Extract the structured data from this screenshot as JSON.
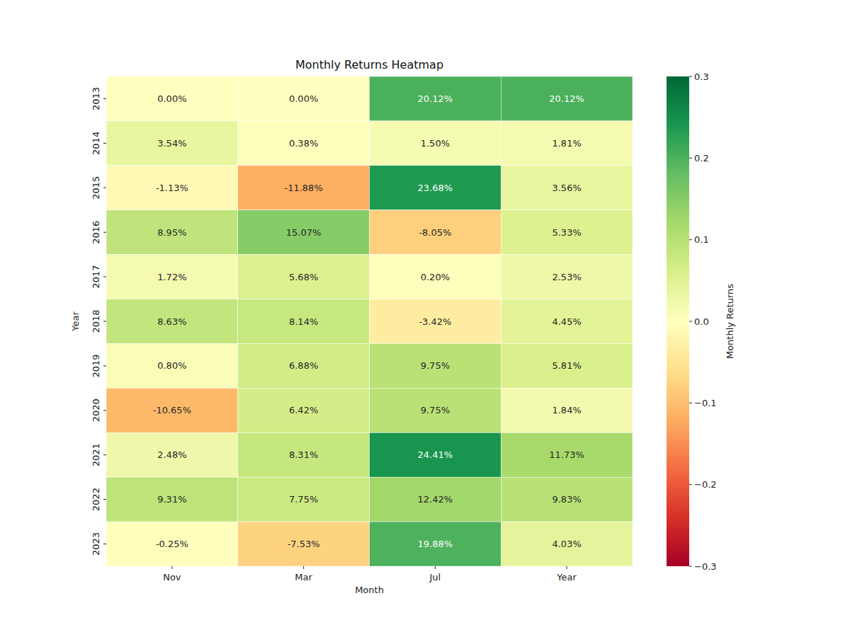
{
  "chart_data": {
    "type": "heatmap",
    "title": "Monthly Returns Heatmap",
    "x_label": "Month",
    "y_label": "Year",
    "categories": [
      "Nov",
      "Mar",
      "Jul",
      "Year"
    ],
    "rows": [
      "2013",
      "2014",
      "2015",
      "2016",
      "2017",
      "2018",
      "2019",
      "2020",
      "2021",
      "2022",
      "2023"
    ],
    "values": [
      [
        0.0,
        0.0,
        0.2012,
        0.2012
      ],
      [
        0.0354,
        0.0038,
        0.015,
        0.0181
      ],
      [
        -0.0113,
        -0.1188,
        0.2368,
        0.0356
      ],
      [
        0.0895,
        0.1507,
        -0.0805,
        0.0533
      ],
      [
        0.0172,
        0.0568,
        0.002,
        0.0253
      ],
      [
        0.0863,
        0.0814,
        -0.0342,
        0.0445
      ],
      [
        0.008,
        0.0688,
        0.0975,
        0.0581
      ],
      [
        -0.1065,
        0.0642,
        0.0975,
        0.0184
      ],
      [
        0.0248,
        0.0831,
        0.2441,
        0.1173
      ],
      [
        0.0931,
        0.0775,
        0.1242,
        0.0983
      ],
      [
        -0.0025,
        -0.0753,
        0.1988,
        0.0403
      ]
    ],
    "value_labels": [
      [
        "0.00%",
        "0.00%",
        "20.12%",
        "20.12%"
      ],
      [
        "3.54%",
        "0.38%",
        "1.50%",
        "1.81%"
      ],
      [
        "-1.13%",
        "-11.88%",
        "23.68%",
        "3.56%"
      ],
      [
        "8.95%",
        "15.07%",
        "-8.05%",
        "5.33%"
      ],
      [
        "1.72%",
        "5.68%",
        "0.20%",
        "2.53%"
      ],
      [
        "8.63%",
        "8.14%",
        "-3.42%",
        "4.45%"
      ],
      [
        "0.80%",
        "6.88%",
        "9.75%",
        "5.81%"
      ],
      [
        "-10.65%",
        "6.42%",
        "9.75%",
        "1.84%"
      ],
      [
        "2.48%",
        "8.31%",
        "24.41%",
        "11.73%"
      ],
      [
        "9.31%",
        "7.75%",
        "12.42%",
        "9.83%"
      ],
      [
        "-0.25%",
        "-7.53%",
        "19.88%",
        "4.03%"
      ]
    ],
    "data_labels": true,
    "colorbar": {
      "label": "Monthly Returns",
      "range": [
        -0.3,
        0.3
      ],
      "ticks": [
        {
          "value": -0.3,
          "label": "−0.3"
        },
        {
          "value": -0.2,
          "label": "−0.2"
        },
        {
          "value": -0.1,
          "label": "−0.1"
        },
        {
          "value": 0,
          "label": "0.0"
        },
        0.1,
        0.2,
        0.3
      ]
    }
  }
}
